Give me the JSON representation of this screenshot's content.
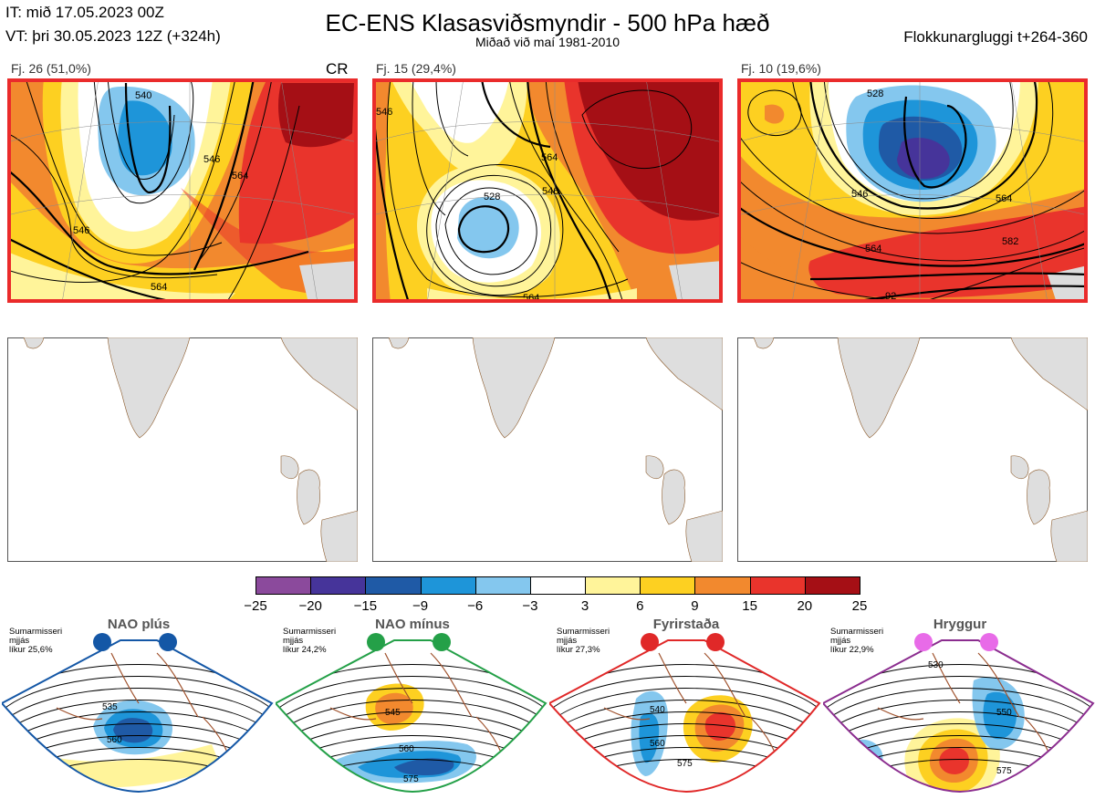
{
  "header": {
    "it": "IT: mið 17.05.2023 00Z",
    "vt": "VT: þri 30.05.2023 12Z  (+324h)",
    "title": "EC-ENS Klasasviðsmyndir - 500 hPa hæð",
    "subtitle": "Miðað við maí 1981-2010",
    "window": "Flokkunargluggi t+264-360"
  },
  "clusters": [
    {
      "label": "Fj. 26 (51,0%)",
      "flag": "CR",
      "contours": [
        "564",
        "546",
        "540",
        "546",
        "564"
      ]
    },
    {
      "label": "Fj. 15 (29,4%)",
      "flag": "",
      "contours": [
        "546",
        "564",
        "546",
        "528",
        "564"
      ]
    },
    {
      "label": "Fj. 10 (19,6%)",
      "flag": "",
      "contours": [
        "528",
        "546",
        "564",
        "564",
        "582",
        "92"
      ]
    }
  ],
  "colorbar": {
    "ticks": [
      "−25",
      "−20",
      "−15",
      "−9",
      "−6",
      "−3",
      "3",
      "6",
      "9",
      "15",
      "20",
      "25"
    ],
    "colors": [
      "#8b4a9c",
      "#46349a",
      "#1f5aa6",
      "#1e95d9",
      "#84c7ee",
      "#ffffff",
      "#fff49a",
      "#fdd021",
      "#f2892e",
      "#e9342c",
      "#a50f15"
    ]
  },
  "regimes": [
    {
      "name": "NAO plús",
      "season": "Sumarmisseri",
      "mean": "mjjás",
      "prob": "líkur 25,6%",
      "color": "#1457a6",
      "dot": "#1457a6",
      "contours": [
        "535",
        "560"
      ]
    },
    {
      "name": "NAO mínus",
      "season": "Sumarmisseri",
      "mean": "mjjás",
      "prob": "líkur 24,2%",
      "color": "#24a048",
      "dot": "#24a048",
      "contours": [
        "545",
        "560",
        "575"
      ]
    },
    {
      "name": "Fyrirstaða",
      "season": "Sumarmisseri",
      "mean": "mjjás",
      "prob": "líkur 27,3%",
      "color": "#e02828",
      "dot": "#e02828",
      "contours": [
        "540",
        "560",
        "575"
      ]
    },
    {
      "name": "Hryggur",
      "season": "Sumarmisseri",
      "mean": "mjjás",
      "prob": "líkur 22,9%",
      "color": "#8b2d8f",
      "dot": "#e86be8",
      "contours": [
        "530",
        "550",
        "575"
      ]
    }
  ],
  "chart_data": {
    "type": "heatmap",
    "title": "EC-ENS Klasasviðsmyndir - 500 hPa hæð",
    "subtitle": "Miðað við maí 1981-2010",
    "series": [
      {
        "name": "Fj. 26",
        "share_percent": 51.0
      },
      {
        "name": "Fj. 15",
        "share_percent": 29.4
      },
      {
        "name": "Fj. 10",
        "share_percent": 19.6
      }
    ],
    "regime_probabilities": [
      {
        "name": "NAO plús",
        "percent": 25.6
      },
      {
        "name": "NAO mínus",
        "percent": 24.2
      },
      {
        "name": "Fyrirstaða",
        "percent": 27.3
      },
      {
        "name": "Hryggur",
        "percent": 22.9
      }
    ],
    "colorbar_range": [
      -25,
      25
    ]
  }
}
